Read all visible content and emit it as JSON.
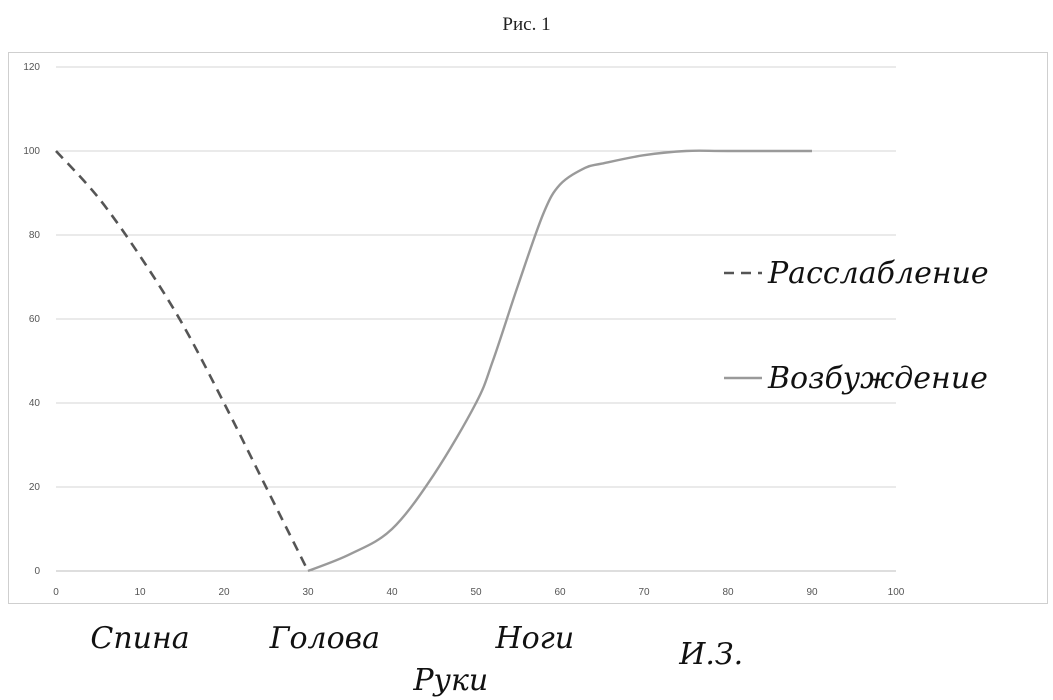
{
  "figure_title": "Рис. 1",
  "chart_data": {
    "type": "line",
    "xlim": [
      0,
      100
    ],
    "ylim": [
      0,
      120
    ],
    "x_ticks": [
      0,
      10,
      20,
      30,
      40,
      50,
      60,
      70,
      80,
      90,
      100
    ],
    "y_ticks": [
      0,
      20,
      40,
      60,
      80,
      100,
      120
    ],
    "grid": "horizontal",
    "legend_position": "right",
    "series": [
      {
        "name": "Расслабление",
        "style": "dashed",
        "color": "#555555",
        "x": [
          0,
          5,
          10,
          15,
          20,
          25,
          30
        ],
        "y": [
          100,
          89,
          75,
          59,
          40,
          20,
          0
        ]
      },
      {
        "name": "Возбуждение",
        "style": "solid",
        "color": "#9a9a9a",
        "x": [
          30,
          35,
          40,
          45,
          50,
          52,
          55,
          58,
          60,
          63,
          65,
          70,
          75,
          80,
          90
        ],
        "y": [
          0,
          4,
          10,
          23,
          40,
          50,
          68,
          85,
          92,
          96,
          97,
          99,
          100,
          100,
          100
        ]
      }
    ],
    "annotations": [
      {
        "text": "Спина",
        "x": 10,
        "row": 1
      },
      {
        "text": "Голова",
        "x": 32,
        "row": 1
      },
      {
        "text": "Руки",
        "x": 47,
        "row": 2
      },
      {
        "text": "Ноги",
        "x": 57,
        "row": 1
      },
      {
        "text": "И.З.",
        "x": 78,
        "row": 1.5
      }
    ]
  }
}
